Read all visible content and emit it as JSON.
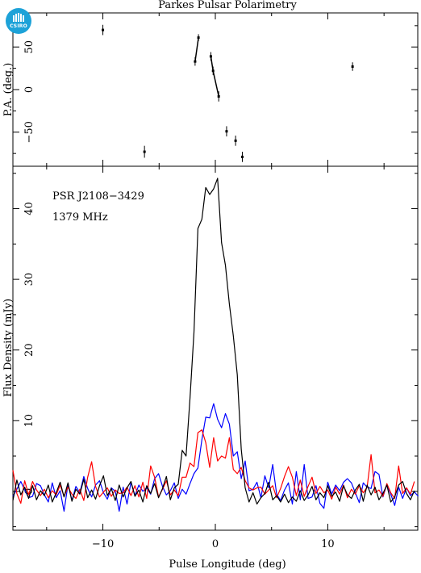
{
  "title": "Parkes Pulsar Polarimetry",
  "logo_text": "CSIRO",
  "colors": {
    "total_intensity": "#000000",
    "linear": "#ff0000",
    "circular": "#0000ff",
    "logo": "#1da2d8"
  },
  "chart_data": [
    {
      "type": "scatter",
      "name": "position-angle-panel",
      "ylabel": "P.A. (deg.)",
      "xlim": [
        -18,
        18
      ],
      "ylim": [
        -90,
        90
      ],
      "y_ticks": [
        -50,
        0,
        50
      ],
      "y_tick_labels": [
        "−50",
        "0",
        "50"
      ],
      "points": [
        {
          "x": -10.0,
          "y": 70,
          "err": 6
        },
        {
          "x": -6.3,
          "y": -73,
          "err": 7
        },
        {
          "x": -1.8,
          "y": 33,
          "err": 5
        },
        {
          "x": -1.5,
          "y": 61,
          "err": 4
        },
        {
          "x": -0.4,
          "y": 39,
          "err": 5
        },
        {
          "x": -0.2,
          "y": 22,
          "err": 5
        },
        {
          "x": 0.3,
          "y": -8,
          "err": 6
        },
        {
          "x": 1.0,
          "y": -49,
          "err": 6
        },
        {
          "x": 1.8,
          "y": -60,
          "err": 6
        },
        {
          "x": 2.4,
          "y": -79,
          "err": 6
        },
        {
          "x": 12.2,
          "y": 27,
          "err": 5
        }
      ],
      "fit_segments": [
        [
          [
            -1.8,
            33
          ],
          [
            -1.5,
            61
          ]
        ],
        [
          [
            -0.4,
            39
          ],
          [
            -0.2,
            22
          ],
          [
            0.3,
            -8
          ]
        ]
      ]
    },
    {
      "type": "line",
      "name": "flux-density-panel",
      "xlabel": "Pulse Longitude (deg)",
      "ylabel": "Flux Density (mJy)",
      "xlim": [
        -18,
        18
      ],
      "ylim": [
        -5.5,
        46
      ],
      "x_ticks": [
        -10,
        0,
        10
      ],
      "x_tick_labels": [
        "−10",
        "0",
        "10"
      ],
      "y_ticks": [
        0,
        10,
        20,
        30,
        40
      ],
      "y_tick_labels": [
        "0",
        "10",
        "20",
        "30",
        "40"
      ],
      "annotations": [
        "PSR J2108−3429",
        "1379 MHz"
      ],
      "series": [
        {
          "key": "total",
          "x_start": -18,
          "x_step": 0.35,
          "values": [
            -1.3,
            1.6,
            -0.5,
            0.6,
            -1.0,
            0.8,
            -1.2,
            0.1,
            -0.6,
            0.9,
            -1.5,
            -0.2,
            1.3,
            -0.8,
            1.2,
            -1.4,
            0.3,
            -0.4,
            1.7,
            -0.9,
            0.2,
            -1.1,
            0.8,
            2.2,
            -0.6,
            0.4,
            -1.3,
            0.9,
            -0.8,
            0.5,
            1.4,
            -0.7,
            0.2,
            -1.5,
            0.8,
            -0.3,
            1.1,
            -0.9,
            0.4,
            2.1,
            -1.2,
            0.5,
            1.0,
            5.8,
            5.0,
            13.2,
            22.5,
            37.2,
            38.5,
            43.0,
            42.0,
            42.8,
            44.3,
            35.2,
            32.0,
            26.5,
            22.0,
            16.5,
            6.0,
            0.5,
            -1.5,
            -0.2,
            -1.8,
            -0.9,
            -0.3,
            1.3,
            -1.2,
            -0.6,
            -1.5,
            -0.4,
            -1.6,
            -0.8,
            -1.4,
            0.1,
            -1.3,
            -0.5,
            0.7,
            -1.2,
            -0.2,
            -0.9,
            0.8,
            -0.7,
            -0.1,
            -1.4,
            0.8,
            -0.5,
            -1.0,
            0.2,
            1.0,
            -1.4,
            0.9,
            -0.5,
            0.6,
            -1.2,
            -0.3,
            0.9,
            -1.5,
            -0.8,
            0.9,
            1.4,
            -0.3,
            -1.2,
            0.1
          ]
        },
        {
          "key": "linear",
          "x_start": -18,
          "x_step": 0.35,
          "values": [
            3.0,
            -0.3,
            -1.7,
            1.5,
            -0.5,
            1.4,
            0.2,
            -0.6,
            0.3,
            -0.9,
            0.1,
            -0.5,
            0.9,
            -0.7,
            0.6,
            -0.4,
            -1.0,
            0.3,
            -1.3,
            2.0,
            4.2,
            0.7,
            -0.8,
            -0.1,
            0.5,
            -0.7,
            0.2,
            -0.3,
            -0.2,
            0.6,
            -0.6,
            0.8,
            -0.8,
            1.3,
            -1.0,
            3.6,
            2.0,
            -0.8,
            0.3,
            1.5,
            -0.5,
            0.2,
            -0.6,
            2.0,
            2.0,
            4.0,
            3.5,
            8.3,
            8.7,
            6.9,
            3.4,
            7.6,
            4.3,
            5.0,
            4.7,
            7.6,
            3.1,
            2.5,
            3.4,
            1.5,
            0.5,
            0.2,
            0.5,
            0.6,
            -0.4,
            0.2,
            0.8,
            -0.9,
            0.4,
            2.1,
            3.5,
            2.0,
            -0.6,
            1.6,
            -0.7,
            0.7,
            2.0,
            -0.3,
            0.7,
            -0.2,
            0.2,
            -1.1,
            0.6,
            -0.4,
            0.9,
            -0.9,
            0.3,
            -0.4,
            0.8,
            -0.2,
            0.6,
            5.2,
            -0.2,
            0.2,
            -0.7,
            1.1,
            -0.2,
            -1.0,
            3.6,
            -0.3,
            0.5,
            -0.4,
            1.4
          ]
        },
        {
          "key": "circular",
          "x_start": -18,
          "x_step": 0.35,
          "values": [
            -0.7,
            0.3,
            1.4,
            0.2,
            -0.9,
            -0.7,
            1.1,
            0.8,
            -0.5,
            -1.5,
            1.2,
            -0.9,
            0.1,
            -2.8,
            1.0,
            -1.3,
            0.7,
            -0.2,
            2.1,
            0.4,
            -0.8,
            0.9,
            1.5,
            -0.2,
            -1.1,
            0.5,
            0.0,
            -2.8,
            0.6,
            -1.8,
            1.3,
            -0.6,
            0.9,
            0.0,
            0.5,
            -0.4,
            1.8,
            2.5,
            0.7,
            -0.5,
            0.1,
            1.2,
            -1.0,
            0.3,
            -0.4,
            1.1,
            2.5,
            3.3,
            7.3,
            10.5,
            10.4,
            12.4,
            10.2,
            9.0,
            11.0,
            9.5,
            5.0,
            5.6,
            1.8,
            4.3,
            0.1,
            0.3,
            1.3,
            -0.9,
            2.2,
            0.5,
            3.8,
            -0.4,
            -1.3,
            0.2,
            1.2,
            -1.8,
            2.8,
            -1.2,
            3.8,
            -1.0,
            -0.8,
            0.8,
            -1.7,
            -2.4,
            1.3,
            -0.4,
            0.9,
            0.1,
            1.3,
            1.8,
            1.2,
            -0.2,
            -1.6,
            1.2,
            0.6,
            0.4,
            2.8,
            2.4,
            -0.8,
            1.0,
            -0.4,
            -2.0,
            0.6,
            -1.0,
            0.5,
            -0.6,
            -0.1,
            -0.7
          ]
        }
      ]
    }
  ]
}
